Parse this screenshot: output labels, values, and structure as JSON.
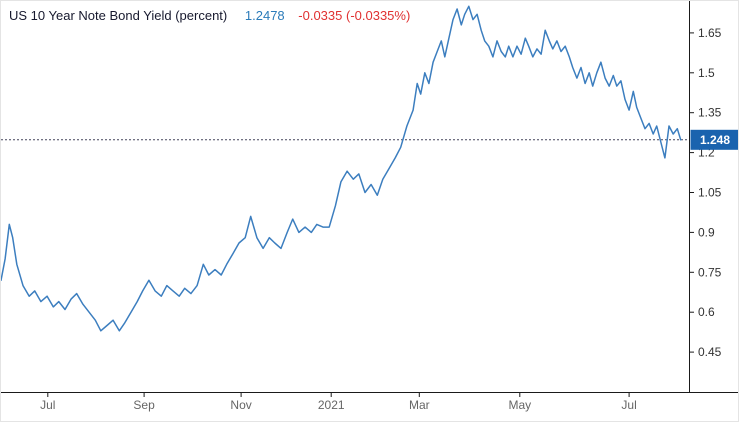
{
  "header": {
    "title": "US 10 Year Note Bond Yield (percent)",
    "last_value": "1.2478",
    "change": "-0.0335 (-0.0335%)"
  },
  "colors": {
    "line": "#3c7ebf",
    "title_text": "#17192e",
    "last_text": "#2b7bb9",
    "change_text": "#e03131",
    "badge_bg": "#1a63ae",
    "badge_text": "#ffffff",
    "axis": "#1a1a1a",
    "ytick_text": "#333333",
    "xtick_text": "#666666",
    "dotted_line": "#44445a"
  },
  "chart_data": {
    "type": "line",
    "title": "US 10 Year Note Bond Yield (percent)",
    "ylabel": "percent",
    "last": 1.2478,
    "change": -0.0335,
    "change_pct": "-0.0335%",
    "ylim": [
      0.3,
      1.77
    ],
    "grid": false,
    "legend": false,
    "yticks": [
      "1.65",
      "1.5",
      "1.35",
      "1.2",
      "1.05",
      "0.9",
      "0.75",
      "0.6",
      "0.45"
    ],
    "xticks": [
      {
        "label": "Jul",
        "t": 0.068
      },
      {
        "label": "Sep",
        "t": 0.208
      },
      {
        "label": "Nov",
        "t": 0.349
      },
      {
        "label": "2021",
        "t": 0.48
      },
      {
        "label": "Mar",
        "t": 0.608
      },
      {
        "label": "May",
        "t": 0.754
      },
      {
        "label": "Jul",
        "t": 0.913
      }
    ],
    "current": {
      "label": "1.248",
      "value": 1.248
    },
    "series": [
      {
        "name": "US 10 Year Note Bond Yield",
        "points": [
          [
            0,
            0.72
          ],
          [
            0.006,
            0.8
          ],
          [
            0.012,
            0.93
          ],
          [
            0.017,
            0.88
          ],
          [
            0.023,
            0.78
          ],
          [
            0.032,
            0.7
          ],
          [
            0.041,
            0.66
          ],
          [
            0.049,
            0.68
          ],
          [
            0.058,
            0.64
          ],
          [
            0.067,
            0.66
          ],
          [
            0.076,
            0.62
          ],
          [
            0.084,
            0.64
          ],
          [
            0.093,
            0.61
          ],
          [
            0.102,
            0.65
          ],
          [
            0.11,
            0.67
          ],
          [
            0.119,
            0.63
          ],
          [
            0.128,
            0.6
          ],
          [
            0.137,
            0.57
          ],
          [
            0.145,
            0.53
          ],
          [
            0.154,
            0.55
          ],
          [
            0.163,
            0.57
          ],
          [
            0.172,
            0.53
          ],
          [
            0.18,
            0.56
          ],
          [
            0.189,
            0.6
          ],
          [
            0.198,
            0.64
          ],
          [
            0.206,
            0.68
          ],
          [
            0.215,
            0.72
          ],
          [
            0.224,
            0.68
          ],
          [
            0.233,
            0.66
          ],
          [
            0.241,
            0.7
          ],
          [
            0.25,
            0.68
          ],
          [
            0.259,
            0.66
          ],
          [
            0.267,
            0.69
          ],
          [
            0.276,
            0.67
          ],
          [
            0.285,
            0.7
          ],
          [
            0.294,
            0.78
          ],
          [
            0.302,
            0.74
          ],
          [
            0.311,
            0.76
          ],
          [
            0.32,
            0.74
          ],
          [
            0.328,
            0.78
          ],
          [
            0.337,
            0.82
          ],
          [
            0.346,
            0.86
          ],
          [
            0.355,
            0.88
          ],
          [
            0.363,
            0.96
          ],
          [
            0.372,
            0.88
          ],
          [
            0.381,
            0.84
          ],
          [
            0.39,
            0.88
          ],
          [
            0.398,
            0.86
          ],
          [
            0.407,
            0.84
          ],
          [
            0.416,
            0.9
          ],
          [
            0.424,
            0.95
          ],
          [
            0.433,
            0.9
          ],
          [
            0.442,
            0.92
          ],
          [
            0.451,
            0.9
          ],
          [
            0.459,
            0.93
          ],
          [
            0.468,
            0.92
          ],
          [
            0.477,
            0.92
          ],
          [
            0.486,
            1.0
          ],
          [
            0.494,
            1.09
          ],
          [
            0.503,
            1.13
          ],
          [
            0.512,
            1.1
          ],
          [
            0.52,
            1.12
          ],
          [
            0.529,
            1.05
          ],
          [
            0.538,
            1.08
          ],
          [
            0.547,
            1.04
          ],
          [
            0.555,
            1.1
          ],
          [
            0.564,
            1.14
          ],
          [
            0.573,
            1.18
          ],
          [
            0.581,
            1.22
          ],
          [
            0.59,
            1.3
          ],
          [
            0.599,
            1.36
          ],
          [
            0.605,
            1.46
          ],
          [
            0.61,
            1.42
          ],
          [
            0.616,
            1.5
          ],
          [
            0.622,
            1.46
          ],
          [
            0.628,
            1.54
          ],
          [
            0.634,
            1.58
          ],
          [
            0.64,
            1.62
          ],
          [
            0.645,
            1.56
          ],
          [
            0.651,
            1.63
          ],
          [
            0.657,
            1.7
          ],
          [
            0.663,
            1.74
          ],
          [
            0.669,
            1.68
          ],
          [
            0.674,
            1.72
          ],
          [
            0.68,
            1.75
          ],
          [
            0.686,
            1.7
          ],
          [
            0.692,
            1.72
          ],
          [
            0.698,
            1.66
          ],
          [
            0.703,
            1.62
          ],
          [
            0.709,
            1.6
          ],
          [
            0.715,
            1.56
          ],
          [
            0.721,
            1.62
          ],
          [
            0.727,
            1.58
          ],
          [
            0.733,
            1.56
          ],
          [
            0.738,
            1.6
          ],
          [
            0.744,
            1.56
          ],
          [
            0.75,
            1.6
          ],
          [
            0.756,
            1.57
          ],
          [
            0.762,
            1.63
          ],
          [
            0.767,
            1.6
          ],
          [
            0.773,
            1.56
          ],
          [
            0.779,
            1.59
          ],
          [
            0.785,
            1.57
          ],
          [
            0.791,
            1.66
          ],
          [
            0.797,
            1.62
          ],
          [
            0.802,
            1.59
          ],
          [
            0.808,
            1.62
          ],
          [
            0.814,
            1.58
          ],
          [
            0.82,
            1.6
          ],
          [
            0.826,
            1.56
          ],
          [
            0.831,
            1.52
          ],
          [
            0.837,
            1.48
          ],
          [
            0.843,
            1.52
          ],
          [
            0.849,
            1.46
          ],
          [
            0.855,
            1.5
          ],
          [
            0.86,
            1.45
          ],
          [
            0.866,
            1.5
          ],
          [
            0.872,
            1.54
          ],
          [
            0.878,
            1.48
          ],
          [
            0.884,
            1.45
          ],
          [
            0.89,
            1.49
          ],
          [
            0.895,
            1.45
          ],
          [
            0.901,
            1.47
          ],
          [
            0.907,
            1.4
          ],
          [
            0.913,
            1.36
          ],
          [
            0.919,
            1.43
          ],
          [
            0.924,
            1.37
          ],
          [
            0.93,
            1.33
          ],
          [
            0.936,
            1.29
          ],
          [
            0.942,
            1.31
          ],
          [
            0.948,
            1.27
          ],
          [
            0.953,
            1.3
          ],
          [
            0.959,
            1.24
          ],
          [
            0.965,
            1.18
          ],
          [
            0.971,
            1.3
          ],
          [
            0.977,
            1.27
          ],
          [
            0.983,
            1.29
          ],
          [
            0.988,
            1.248
          ]
        ]
      }
    ]
  }
}
